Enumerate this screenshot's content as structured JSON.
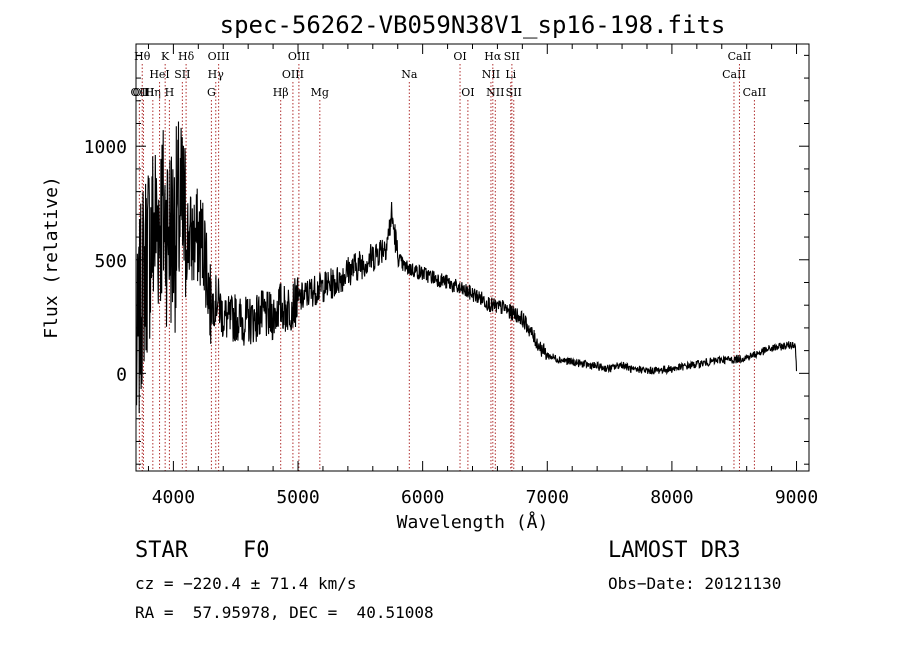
{
  "chart_data": {
    "type": "line",
    "title": "spec-56262-VB059N38V1_sp16-198.fits",
    "xlabel": "Wavelength (Å)",
    "ylabel": "Flux (relative)",
    "xlim": [
      3700,
      9100
    ],
    "ylim": [
      -430,
      1450
    ],
    "x_ticks": [
      4000,
      5000,
      6000,
      7000,
      8000,
      9000
    ],
    "y_ticks": [
      0,
      500,
      1000
    ],
    "grid": false,
    "series": [
      {
        "name": "flux",
        "color": "#000000",
        "x": [
          3700,
          3750,
          3800,
          3850,
          3900,
          3950,
          4000,
          4050,
          4100,
          4150,
          4200,
          4250,
          4300,
          4350,
          4400,
          4450,
          4500,
          4550,
          4600,
          4650,
          4700,
          4750,
          4800,
          4850,
          4900,
          4950,
          5000,
          5100,
          5200,
          5300,
          5400,
          5500,
          5600,
          5650,
          5700,
          5730,
          5750,
          5780,
          5800,
          5850,
          5900,
          6000,
          6100,
          6200,
          6300,
          6400,
          6500,
          6550,
          6600,
          6650,
          6700,
          6750,
          6800,
          6850,
          6900,
          6950,
          7000,
          7100,
          7200,
          7300,
          7400,
          7500,
          7600,
          7700,
          7750,
          7800,
          7900,
          8000,
          8100,
          8200,
          8300,
          8400,
          8500,
          8600,
          8700,
          8800,
          8900,
          8990,
          9000
        ],
        "y": [
          0,
          400,
          550,
          650,
          700,
          650,
          600,
          700,
          620,
          580,
          600,
          560,
          300,
          330,
          250,
          230,
          250,
          230,
          230,
          240,
          260,
          250,
          250,
          300,
          280,
          300,
          320,
          360,
          380,
          400,
          450,
          480,
          510,
          540,
          560,
          620,
          700,
          600,
          510,
          470,
          460,
          440,
          420,
          400,
          370,
          350,
          320,
          300,
          290,
          290,
          270,
          260,
          240,
          200,
          150,
          110,
          80,
          60,
          50,
          40,
          30,
          20,
          40,
          10,
          20,
          10,
          15,
          20,
          30,
          40,
          50,
          60,
          60,
          70,
          90,
          110,
          120,
          130,
          10
        ]
      }
    ],
    "lines": [
      {
        "label": "OII",
        "x": 3727,
        "row": 3
      },
      {
        "label": "Hθ",
        "x": 3750,
        "row": 1
      },
      {
        "label": "OIII",
        "x": 3760,
        "row": 3
      },
      {
        "label": "Hη",
        "x": 3835,
        "row": 3
      },
      {
        "label": "HeI",
        "x": 3889,
        "row": 2
      },
      {
        "label": "K",
        "x": 3934,
        "row": 1
      },
      {
        "label": "H",
        "x": 3968,
        "row": 3
      },
      {
        "label": "SII",
        "x": 4072,
        "row": 2
      },
      {
        "label": "Hδ",
        "x": 4102,
        "row": 1
      },
      {
        "label": "G",
        "x": 4305,
        "row": 3
      },
      {
        "label": "Hγ",
        "x": 4340,
        "row": 2
      },
      {
        "label": "OIII",
        "x": 4363,
        "row": 1
      },
      {
        "label": "Hβ",
        "x": 4861,
        "row": 3
      },
      {
        "label": "OIII",
        "x": 4959,
        "row": 2
      },
      {
        "label": "OIII",
        "x": 5007,
        "row": 1
      },
      {
        "label": "Mg",
        "x": 5175,
        "row": 3
      },
      {
        "label": "Na",
        "x": 5893,
        "row": 2
      },
      {
        "label": "OI",
        "x": 6300,
        "row": 1
      },
      {
        "label": "OI",
        "x": 6363,
        "row": 3
      },
      {
        "label": "NII",
        "x": 6548,
        "row": 2
      },
      {
        "label": "Hα",
        "x": 6563,
        "row": 1
      },
      {
        "label": "NII",
        "x": 6583,
        "row": 3
      },
      {
        "label": "Li",
        "x": 6707,
        "row": 2
      },
      {
        "label": "SII",
        "x": 6716,
        "row": 1
      },
      {
        "label": "SII",
        "x": 6731,
        "row": 3
      },
      {
        "label": "CaII",
        "x": 8498,
        "row": 2
      },
      {
        "label": "CaII",
        "x": 8542,
        "row": 1
      },
      {
        "label": "CaII",
        "x": 8662,
        "row": 3
      }
    ]
  },
  "info": {
    "class": "STAR",
    "subclass": "F0",
    "survey": "LAMOST DR3",
    "cz": "cz = −220.4 ± 71.4 km/s",
    "obs_date": "Obs−Date: 20121130",
    "coords": "RA =  57.95978, DEC =  40.51008"
  }
}
